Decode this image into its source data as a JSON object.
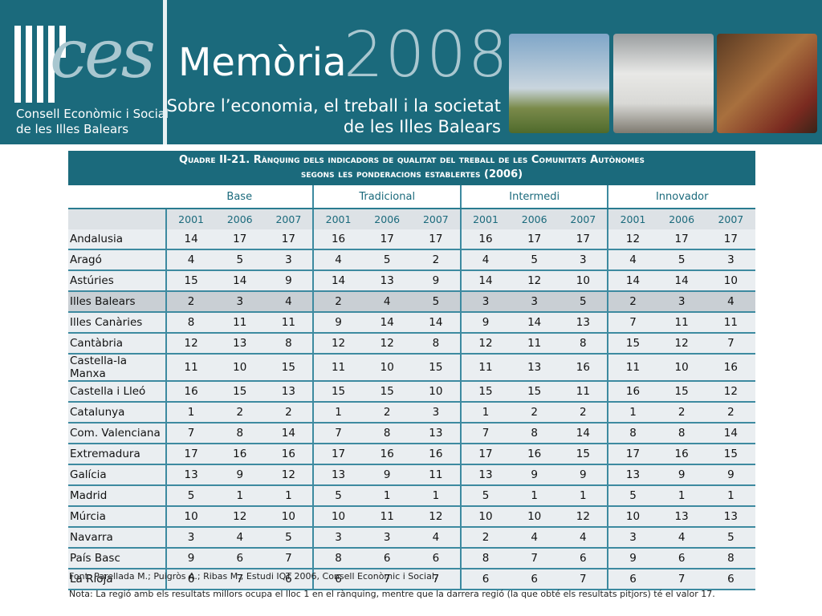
{
  "header": {
    "logo": "ces",
    "organization": [
      "Consell Econòmic i Social",
      "de les Illes Balears"
    ],
    "title": "Memòria",
    "year": "2008",
    "subtitle": [
      "Sobre l’economia, el treball i la societat",
      "de les Illes Balears"
    ]
  },
  "table": {
    "title": [
      "Quadre II-21. Rànquing dels indicadors de qualitat del treball de les Comunitats Autònomes",
      "segons les ponderacions establertes (2006)"
    ],
    "groups": [
      {
        "name": "Base",
        "years": [
          "2001",
          "2006",
          "2007"
        ]
      },
      {
        "name": "Tradicional",
        "years": [
          "2001",
          "2006",
          "2007"
        ]
      },
      {
        "name": "Intermedi",
        "years": [
          "2001",
          "2006",
          "2007"
        ]
      },
      {
        "name": "Innovador",
        "years": [
          "2001",
          "2006",
          "2007"
        ]
      }
    ],
    "rows": [
      [
        "Andalusia",
        14,
        17,
        17,
        16,
        17,
        17,
        16,
        17,
        17,
        12,
        17,
        17
      ],
      [
        "Aragó",
        4,
        5,
        3,
        4,
        5,
        2,
        4,
        5,
        3,
        4,
        5,
        3
      ],
      [
        "Astúries",
        15,
        14,
        9,
        14,
        13,
        9,
        14,
        12,
        10,
        14,
        14,
        10
      ],
      [
        "Illes Balears",
        2,
        3,
        4,
        2,
        4,
        5,
        3,
        3,
        5,
        2,
        3,
        4
      ],
      [
        "Illes Canàries",
        8,
        11,
        11,
        9,
        14,
        14,
        9,
        14,
        13,
        7,
        11,
        11
      ],
      [
        "Cantàbria",
        12,
        13,
        8,
        12,
        12,
        8,
        12,
        11,
        8,
        15,
        12,
        7
      ],
      [
        "Castella-la Manxa",
        11,
        10,
        15,
        11,
        10,
        15,
        11,
        13,
        16,
        11,
        10,
        16
      ],
      [
        "Castella i Lleó",
        16,
        15,
        13,
        15,
        15,
        10,
        15,
        15,
        11,
        16,
        15,
        12
      ],
      [
        "Catalunya",
        1,
        2,
        2,
        1,
        2,
        3,
        1,
        2,
        2,
        1,
        2,
        2
      ],
      [
        "Com. Valenciana",
        7,
        8,
        14,
        7,
        8,
        13,
        7,
        8,
        14,
        8,
        8,
        14
      ],
      [
        "Extremadura",
        17,
        16,
        16,
        17,
        16,
        16,
        17,
        16,
        15,
        17,
        16,
        15
      ],
      [
        "Galícia",
        13,
        9,
        12,
        13,
        9,
        11,
        13,
        9,
        9,
        13,
        9,
        9
      ],
      [
        "Madrid",
        5,
        1,
        1,
        5,
        1,
        1,
        5,
        1,
        1,
        5,
        1,
        1
      ],
      [
        "Múrcia",
        10,
        12,
        10,
        10,
        11,
        12,
        10,
        10,
        12,
        10,
        13,
        13
      ],
      [
        "Navarra",
        3,
        4,
        5,
        3,
        3,
        4,
        2,
        4,
        4,
        3,
        4,
        5
      ],
      [
        "País Basc",
        9,
        6,
        7,
        8,
        6,
        6,
        8,
        7,
        6,
        9,
        6,
        8
      ],
      [
        "La Rioja",
        6,
        7,
        6,
        6,
        7,
        7,
        6,
        6,
        7,
        6,
        7,
        6
      ]
    ],
    "notes": [
      "Font: Parellada M.; Puigròs A.; Ribas M.; Estudi IQT 2006, Consell Econòmic i Social.",
      "Nota: La regió amb els resultats millors ocupa el lloc 1 en el rànquing, mentre que la darrera regió (la que obté els resultats pitjors) té el valor 17."
    ]
  }
}
